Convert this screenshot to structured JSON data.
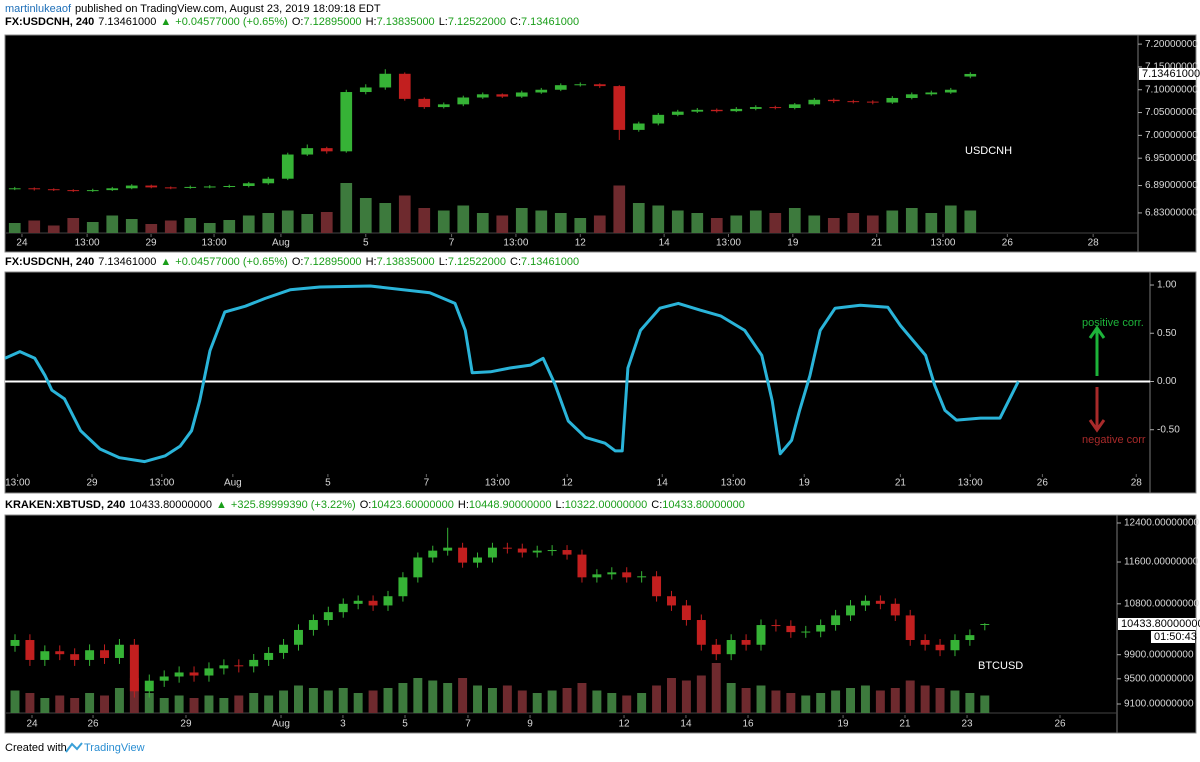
{
  "page": {
    "author": "martinlukeaof",
    "published": "published on TradingView.com, August 23, 2019 18:09:18 EDT",
    "footer_prefix": "Created with",
    "footer_brand": "TradingView"
  },
  "chart_data": [
    {
      "type": "candlestick",
      "label": "USDCNH",
      "info": [
        {
          "text": "FX:USDCNH, 240",
          "color": "#000000"
        },
        {
          "text": "7.13461000",
          "color": "#000000"
        },
        {
          "text": "▲",
          "color": "#1a9e1a"
        },
        {
          "text": "+0.04577000 (+0.65%)",
          "color": "#1a9e1a"
        },
        {
          "text": "O:",
          "color": "#000000"
        },
        {
          "text": "7.12895000",
          "color": "#1a9e1a"
        },
        {
          "text": "H:",
          "color": "#000000"
        },
        {
          "text": "7.13835000",
          "color": "#1a9e1a"
        },
        {
          "text": "L:",
          "color": "#000000"
        },
        {
          "text": "7.12522000",
          "color": "#1a9e1a"
        },
        {
          "text": "C:",
          "color": "#000000"
        },
        {
          "text": "7.13461000",
          "color": "#1a9e1a"
        }
      ],
      "up_color": "#36b336",
      "down_color": "#c21f1f",
      "volume_up_color": "#3d7a3d",
      "volume_down_color": "#6e2a2e",
      "open": [
        6.883,
        6.884,
        6.882,
        6.88,
        6.879,
        6.88,
        6.884,
        6.89,
        6.886,
        6.885,
        6.887,
        6.888,
        6.889,
        6.895,
        6.905,
        6.958,
        6.972,
        6.965,
        7.095,
        7.105,
        7.135,
        7.08,
        7.062,
        7.068,
        7.083,
        7.09,
        7.085,
        7.094,
        7.1,
        7.11,
        7.112,
        7.108,
        7.012,
        7.026,
        7.045,
        7.052,
        7.056,
        7.053,
        7.058,
        7.062,
        7.06,
        7.068,
        7.078,
        7.075,
        7.074,
        7.072,
        7.082,
        7.09,
        7.094,
        7.12895
      ],
      "high": [
        6.887,
        6.886,
        6.884,
        6.882,
        6.883,
        6.887,
        6.893,
        6.892,
        6.888,
        6.89,
        6.891,
        6.892,
        6.898,
        6.909,
        6.962,
        6.98,
        6.975,
        7.1,
        7.112,
        7.145,
        7.138,
        7.083,
        7.072,
        7.087,
        7.094,
        7.092,
        7.098,
        7.104,
        7.114,
        7.116,
        7.114,
        7.11,
        7.03,
        7.049,
        7.056,
        7.06,
        7.059,
        7.062,
        7.066,
        7.065,
        7.071,
        7.082,
        7.081,
        7.078,
        7.077,
        7.086,
        7.094,
        7.098,
        7.104,
        7.13835
      ],
      "low": [
        6.88,
        6.879,
        6.878,
        6.876,
        6.876,
        6.878,
        6.882,
        6.884,
        6.882,
        6.883,
        6.884,
        6.885,
        6.886,
        6.892,
        6.902,
        6.955,
        6.96,
        6.962,
        7.09,
        7.1,
        7.076,
        7.058,
        7.059,
        7.064,
        7.08,
        7.082,
        7.082,
        7.091,
        7.097,
        7.107,
        7.104,
        6.99,
        7.008,
        7.022,
        7.042,
        7.049,
        7.05,
        7.051,
        7.055,
        7.057,
        7.057,
        7.065,
        7.071,
        7.07,
        7.068,
        7.069,
        7.079,
        7.087,
        7.091,
        7.12522
      ],
      "close": [
        6.884,
        6.882,
        6.88,
        6.879,
        6.88,
        6.884,
        6.89,
        6.886,
        6.885,
        6.887,
        6.888,
        6.889,
        6.895,
        6.905,
        6.958,
        6.972,
        6.965,
        7.095,
        7.105,
        7.135,
        7.08,
        7.062,
        7.068,
        7.083,
        7.09,
        7.085,
        7.094,
        7.1,
        7.11,
        7.112,
        7.108,
        7.012,
        7.026,
        7.045,
        7.052,
        7.056,
        7.053,
        7.058,
        7.062,
        7.06,
        7.068,
        7.078,
        7.075,
        7.074,
        7.072,
        7.082,
        7.09,
        7.094,
        7.1,
        7.13461
      ],
      "volumes": [
        20,
        25,
        15,
        30,
        22,
        35,
        28,
        18,
        25,
        30,
        20,
        26,
        35,
        40,
        45,
        38,
        42,
        100,
        70,
        60,
        75,
        50,
        45,
        55,
        40,
        35,
        50,
        45,
        40,
        30,
        35,
        95,
        60,
        55,
        45,
        40,
        30,
        35,
        45,
        40,
        50,
        35,
        30,
        40,
        35,
        45,
        50,
        40,
        55,
        45
      ],
      "last_price": {
        "value": 7.13461,
        "label": "7.13461000"
      },
      "xlim": [
        -0.5,
        57.6
      ],
      "xticks": [
        {
          "value": 0.37,
          "label": "24"
        },
        {
          "value": 3.71,
          "label": "13:00"
        },
        {
          "value": 6.99,
          "label": "29"
        },
        {
          "value": 10.22,
          "label": "13:00"
        },
        {
          "value": 13.65,
          "label": "Aug"
        },
        {
          "value": 18.0,
          "label": "5"
        },
        {
          "value": 22.4,
          "label": "7"
        },
        {
          "value": 25.7,
          "label": "13:00"
        },
        {
          "value": 29.0,
          "label": "12"
        },
        {
          "value": 33.3,
          "label": "14"
        },
        {
          "value": 36.6,
          "label": "13:00"
        },
        {
          "value": 39.9,
          "label": "19"
        },
        {
          "value": 44.2,
          "label": "21"
        },
        {
          "value": 47.6,
          "label": "13:00"
        },
        {
          "value": 50.9,
          "label": "26"
        },
        {
          "value": 55.3,
          "label": "28"
        }
      ],
      "ylim": [
        6.786,
        7.22
      ],
      "yticks": [
        {
          "value": 7.2,
          "label": "7.20000000"
        },
        {
          "value": 7.15,
          "label": "7.15000000"
        },
        {
          "value": 7.1,
          "label": "7.10000000"
        },
        {
          "value": 7.05,
          "label": "7.05000000"
        },
        {
          "value": 7.0,
          "label": "7.00000000"
        },
        {
          "value": 6.95,
          "label": "6.95000000"
        },
        {
          "value": 6.89,
          "label": "6.89000000"
        },
        {
          "value": 6.83,
          "label": "6.83000000"
        }
      ]
    },
    {
      "type": "line",
      "info": [
        {
          "text": "FX:USDCNH, 240",
          "color": "#000000"
        },
        {
          "text": "7.13461000",
          "color": "#000000"
        },
        {
          "text": "▲",
          "color": "#1a9e1a"
        },
        {
          "text": "+0.04577000 (+0.65%)",
          "color": "#1a9e1a"
        },
        {
          "text": "O:",
          "color": "#000000"
        },
        {
          "text": "7.12895000",
          "color": "#1a9e1a"
        },
        {
          "text": "H:",
          "color": "#000000"
        },
        {
          "text": "7.13835000",
          "color": "#1a9e1a"
        },
        {
          "text": "L:",
          "color": "#000000"
        },
        {
          "text": "7.12522000",
          "color": "#1a9e1a"
        },
        {
          "text": "C:",
          "color": "#000000"
        },
        {
          "text": "7.13461000",
          "color": "#1a9e1a"
        }
      ],
      "x": [
        0,
        1.3,
        2.6,
        3.5,
        4.1,
        5.2,
        6.6,
        8.3,
        10.0,
        12.2,
        14.0,
        15.3,
        16.3,
        17.0,
        17.9,
        19.2,
        21.0,
        22.7,
        24.9,
        27.5,
        31.9,
        37.1,
        39.3,
        40.2,
        40.8,
        42.4,
        44.1,
        45.9,
        47.0,
        48.0,
        49.2,
        50.7,
        52.4,
        53.3,
        53.9,
        54.4,
        55.5,
        57.2,
        58.8,
        60.7,
        62.5,
        64.6,
        66.1,
        67.0,
        67.7,
        68.7,
        69.4,
        70.3,
        71.2,
        72.5,
        74.7,
        77.1,
        78.2,
        80.4,
        81.2,
        82.1,
        83.1,
        85.2,
        86.9,
        88.5
      ],
      "series": [
        {
          "color": "#2ab4d9",
          "values": [
            0.24,
            0.31,
            0.24,
            0.06,
            -0.09,
            -0.18,
            -0.51,
            -0.7,
            -0.79,
            -0.83,
            -0.77,
            -0.67,
            -0.51,
            -0.2,
            0.32,
            0.72,
            0.78,
            0.86,
            0.95,
            0.98,
            0.99,
            0.92,
            0.81,
            0.53,
            0.09,
            0.1,
            0.14,
            0.17,
            0.24,
            -0.02,
            -0.41,
            -0.58,
            -0.64,
            -0.72,
            -0.72,
            0.14,
            0.53,
            0.76,
            0.81,
            0.74,
            0.68,
            0.53,
            0.27,
            -0.2,
            -0.75,
            -0.61,
            -0.3,
            0.06,
            0.53,
            0.76,
            0.79,
            0.77,
            0.58,
            0.27,
            -0.04,
            -0.3,
            -0.4,
            -0.38,
            -0.38,
            0
          ]
        }
      ],
      "hline": {
        "value": 0,
        "color": "#ffffff"
      },
      "annotations": [
        {
          "text": "positive corr.",
          "color": "#1db33a",
          "arrow": "up"
        },
        {
          "text": "negative corr",
          "color": "#a82a2a",
          "arrow": "down"
        }
      ],
      "xlim": [
        0,
        100
      ],
      "xticks": [
        {
          "value": 1.1,
          "label": "13:00"
        },
        {
          "value": 7.6,
          "label": "29"
        },
        {
          "value": 13.7,
          "label": "13:00"
        },
        {
          "value": 19.9,
          "label": "Aug"
        },
        {
          "value": 28.2,
          "label": "5"
        },
        {
          "value": 36.8,
          "label": "7"
        },
        {
          "value": 43.0,
          "label": "13:00"
        },
        {
          "value": 49.1,
          "label": "12"
        },
        {
          "value": 57.4,
          "label": "14"
        },
        {
          "value": 63.6,
          "label": "13:00"
        },
        {
          "value": 69.8,
          "label": "19"
        },
        {
          "value": 78.2,
          "label": "21"
        },
        {
          "value": 84.3,
          "label": "13:00"
        },
        {
          "value": 90.6,
          "label": "26"
        },
        {
          "value": 98.8,
          "label": "28"
        }
      ],
      "ylim": [
        -1.156,
        1.135
      ],
      "yticks": [
        {
          "value": 1,
          "label": "1.00"
        },
        {
          "value": 0.5,
          "label": "0.50"
        },
        {
          "value": 0,
          "label": "0.00"
        },
        {
          "value": -0.5,
          "label": "-0.50"
        }
      ]
    },
    {
      "type": "candlestick",
      "label": "BTCUSD",
      "log_scale": true,
      "info": [
        {
          "text": "KRAKEN:XBTUSD, 240",
          "color": "#000000"
        },
        {
          "text": "10433.80000000",
          "color": "#000000"
        },
        {
          "text": "▲",
          "color": "#1a9e1a"
        },
        {
          "text": "+325.89999390 (+3.22%)",
          "color": "#1a9e1a"
        },
        {
          "text": "O:",
          "color": "#000000"
        },
        {
          "text": "10423.60000000",
          "color": "#1a9e1a"
        },
        {
          "text": "H:",
          "color": "#000000"
        },
        {
          "text": "10448.90000000",
          "color": "#1a9e1a"
        },
        {
          "text": "L:",
          "color": "#000000"
        },
        {
          "text": "10322.00000000",
          "color": "#1a9e1a"
        },
        {
          "text": "C:",
          "color": "#000000"
        },
        {
          "text": "10433.80000000",
          "color": "#1a9e1a"
        }
      ],
      "up_color": "#36b336",
      "down_color": "#c21f1f",
      "volume_up_color": "#3d7a3d",
      "volume_down_color": "#6e2a2e",
      "open": [
        10050,
        10152,
        9812,
        9959,
        9909,
        9812,
        9976,
        9845,
        10070,
        9300,
        9470,
        9538,
        9604,
        9554,
        9671,
        9722,
        9705,
        9812,
        9930,
        10070,
        10328,
        10505,
        10647,
        10800,
        10856,
        10770,
        10941,
        11300,
        11690,
        11828,
        11888,
        11588,
        11690,
        11888,
        11870,
        11790,
        11828,
        11840,
        11748,
        11300,
        11358,
        11397,
        11300,
        11320,
        10941,
        10770,
        10505,
        10070,
        9909,
        10152,
        10070,
        10415,
        10400,
        10290,
        10300,
        10415,
        10588,
        10770,
        10856,
        10800,
        10588,
        10152,
        10070,
        9976,
        10152,
        10423.6
      ],
      "high": [
        10252,
        10252,
        10059,
        10059,
        10009,
        10076,
        10076,
        10170,
        10170,
        9570,
        9638,
        9704,
        9704,
        9771,
        9822,
        9822,
        9912,
        10030,
        10170,
        10428,
        10605,
        10747,
        10900,
        10956,
        10956,
        11041,
        11400,
        11790,
        11928,
        12300,
        11988,
        11790,
        11988,
        11988,
        11970,
        11928,
        11940,
        11940,
        11848,
        11458,
        11497,
        11497,
        11420,
        11420,
        11041,
        10870,
        10605,
        10170,
        10252,
        10252,
        10515,
        10515,
        10500,
        10400,
        10515,
        10688,
        10870,
        10956,
        10956,
        10900,
        10688,
        10252,
        10170,
        10252,
        10337,
        10448.9
      ],
      "low": [
        9950,
        9712,
        9712,
        9809,
        9712,
        9712,
        9745,
        9745,
        9200,
        9200,
        9370,
        9438,
        9454,
        9454,
        9571,
        9605,
        9605,
        9712,
        9830,
        9970,
        10228,
        10405,
        10547,
        10700,
        10670,
        10670,
        10841,
        11200,
        11590,
        11728,
        11488,
        11488,
        11590,
        11770,
        11690,
        11690,
        11728,
        11648,
        11200,
        11200,
        11258,
        11200,
        11200,
        10841,
        10670,
        10405,
        9970,
        9809,
        9809,
        9970,
        9970,
        10300,
        10190,
        10190,
        10200,
        10315,
        10488,
        10670,
        10700,
        10488,
        10052,
        9970,
        9876,
        9876,
        10052,
        10322
      ],
      "close": [
        10152,
        9812,
        9959,
        9909,
        9812,
        9976,
        9845,
        10070,
        9300,
        9470,
        9538,
        9604,
        9554,
        9671,
        9722,
        9705,
        9812,
        9930,
        10070,
        10328,
        10505,
        10647,
        10800,
        10856,
        10770,
        10941,
        11300,
        11690,
        11828,
        11888,
        11588,
        11690,
        11888,
        11870,
        11790,
        11828,
        11840,
        11748,
        11300,
        11358,
        11397,
        11300,
        11320,
        10941,
        10770,
        10505,
        10070,
        9909,
        10152,
        10070,
        10415,
        10400,
        10290,
        10300,
        10415,
        10588,
        10770,
        10856,
        10800,
        10588,
        10152,
        10070,
        9976,
        10152,
        10237,
        10433.8
      ],
      "volumes": [
        45,
        40,
        30,
        35,
        30,
        40,
        35,
        50,
        70,
        40,
        30,
        35,
        30,
        35,
        30,
        35,
        40,
        35,
        45,
        55,
        50,
        45,
        50,
        40,
        45,
        50,
        60,
        70,
        65,
        60,
        70,
        55,
        50,
        55,
        45,
        40,
        45,
        50,
        60,
        45,
        40,
        35,
        40,
        55,
        70,
        65,
        75,
        100,
        60,
        50,
        55,
        45,
        40,
        35,
        40,
        45,
        50,
        55,
        45,
        50,
        65,
        55,
        50,
        45,
        40,
        35
      ],
      "last_price": {
        "value": 10433.8,
        "label": "10433.80000000"
      },
      "countdown": "01:50:43",
      "xlim": [
        -0.67,
        73.86
      ],
      "xticks": [
        {
          "value": 1.14,
          "label": "24"
        },
        {
          "value": 5.23,
          "label": "26"
        },
        {
          "value": 11.46,
          "label": "29"
        },
        {
          "value": 17.83,
          "label": "Aug"
        },
        {
          "value": 21.98,
          "label": "3"
        },
        {
          "value": 26.14,
          "label": "5"
        },
        {
          "value": 30.36,
          "label": "7"
        },
        {
          "value": 34.52,
          "label": "9"
        },
        {
          "value": 40.82,
          "label": "12"
        },
        {
          "value": 44.97,
          "label": "14"
        },
        {
          "value": 49.13,
          "label": "16"
        },
        {
          "value": 55.5,
          "label": "19"
        },
        {
          "value": 59.65,
          "label": "21"
        },
        {
          "value": 63.81,
          "label": "23"
        },
        {
          "value": 70.04,
          "label": "26"
        }
      ],
      "ylim": [
        8961,
        12571
      ],
      "yticks": [
        {
          "value": 12400,
          "label": "12400.00000000"
        },
        {
          "value": 11600,
          "label": "11600.00000000"
        },
        {
          "value": 10800,
          "label": "10800.00000000"
        },
        {
          "value": 9900,
          "label": "9900.00000000"
        },
        {
          "value": 9500,
          "label": "9500.00000000"
        },
        {
          "value": 9100,
          "label": "9100.00000000"
        }
      ]
    }
  ]
}
